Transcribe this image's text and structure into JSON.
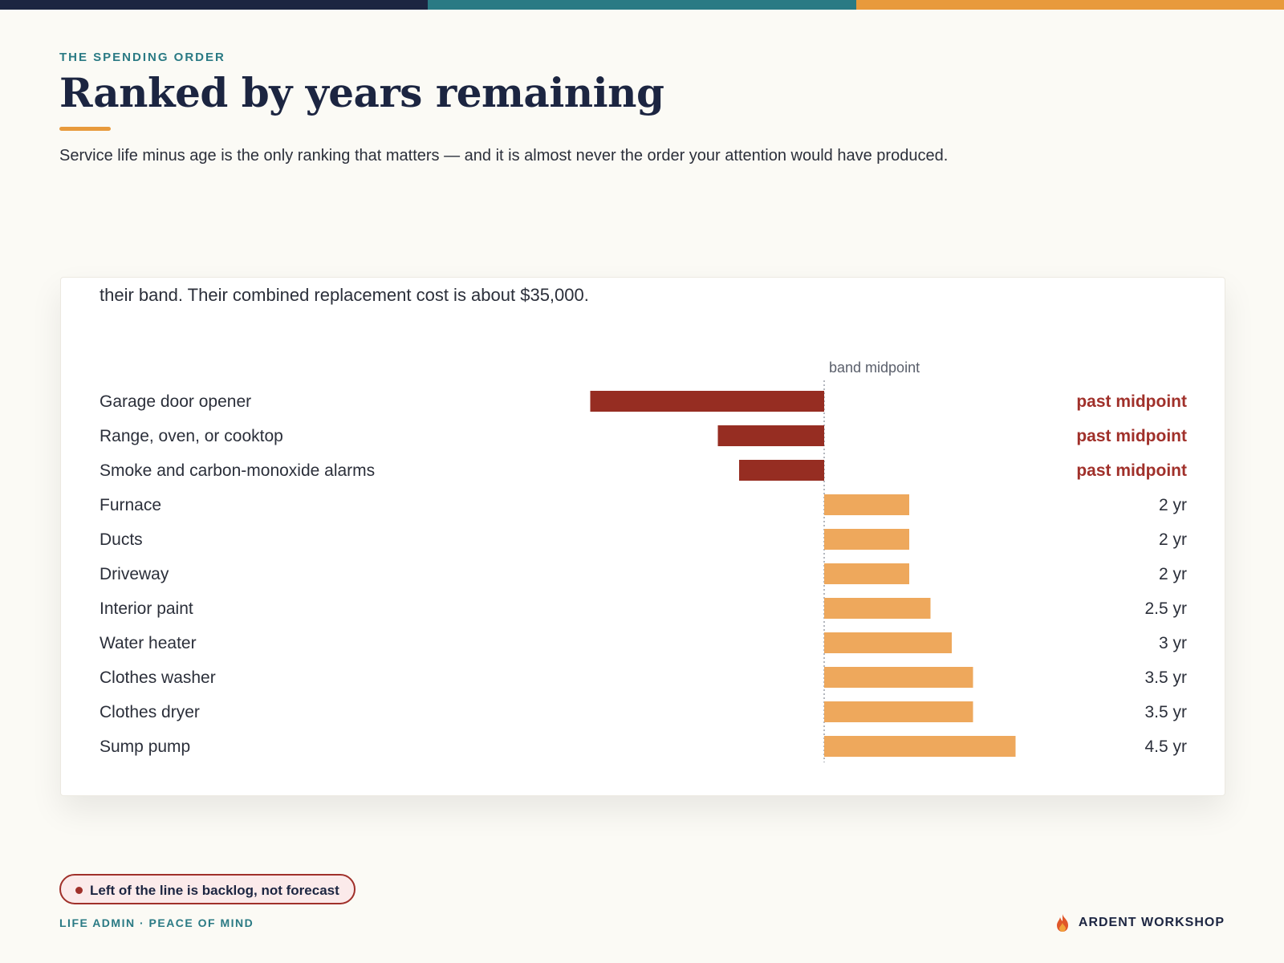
{
  "header": {
    "eyebrow": "THE SPENDING ORDER",
    "title": "Ranked by years remaining",
    "subtitle": "Service life minus age is the only ranking that matters — and it is almost never the order your attention would have produced."
  },
  "card": {
    "cropped_text": "their band. Their combined replacement cost is about $35,000."
  },
  "chart_data": {
    "type": "bar",
    "orientation": "horizontal",
    "reference_line_label": "band midpoint",
    "reference_value": 0,
    "xlim": [
      -5.5,
      5
    ],
    "categories": [
      "Garage door opener",
      "Range, oven, or cooktop",
      "Smoke and carbon-monoxide alarms",
      "Furnace",
      "Ducts",
      "Driveway",
      "Interior paint",
      "Water heater",
      "Clothes washer",
      "Clothes dryer",
      "Sump pump"
    ],
    "values": [
      -5.5,
      -2.5,
      -2,
      2,
      2,
      2,
      2.5,
      3,
      3.5,
      3.5,
      4.5
    ],
    "value_labels": [
      "past midpoint",
      "past midpoint",
      "past midpoint",
      "2 yr",
      "2 yr",
      "2 yr",
      "2.5 yr",
      "3 yr",
      "3.5 yr",
      "3.5 yr",
      "4.5 yr"
    ],
    "colors": {
      "past": "#962d22",
      "remaining": "#eea85c"
    }
  },
  "footer": {
    "pill_text": "Left of the line is backlog, not forecast",
    "left": "LIFE ADMIN · PEACE OF MIND",
    "brand": "ARDENT WORKSHOP",
    "brand_icon": "flame-icon"
  },
  "colors": {
    "navy": "#1c2541",
    "teal": "#2a7a84",
    "orange": "#e89a3c",
    "red": "#a0302a"
  }
}
